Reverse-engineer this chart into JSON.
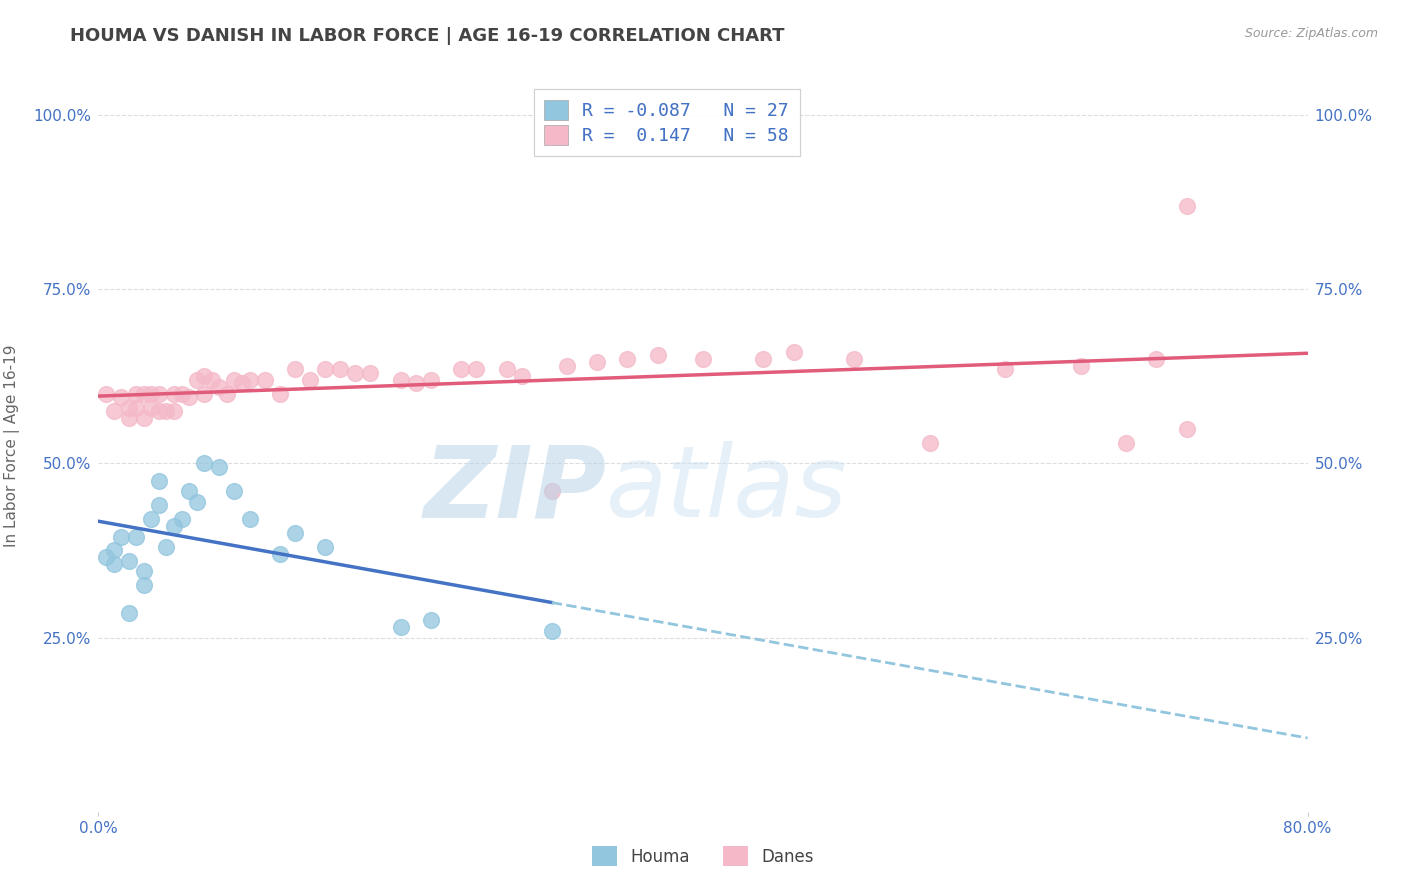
{
  "title": "HOUMA VS DANISH IN LABOR FORCE | AGE 16-19 CORRELATION CHART",
  "source_text": "Source: ZipAtlas.com",
  "ylabel": "In Labor Force | Age 16-19",
  "xlim": [
    0.0,
    0.8
  ],
  "ylim": [
    0.0,
    1.05
  ],
  "ytick_vals": [
    0.25,
    0.5,
    0.75,
    1.0
  ],
  "xtick_vals": [
    0.0,
    0.8
  ],
  "houma_color": "#92c5de",
  "danes_color": "#f4b8c8",
  "trend_houma_solid_color": "#4472c4",
  "trend_houma_dash_color": "#92c5de",
  "trend_danes_color": "#e05c7a",
  "houma_R": -0.087,
  "houma_N": 27,
  "danes_R": 0.147,
  "danes_N": 58,
  "tick_color": "#4472c4",
  "background_color": "#ffffff",
  "grid_color": "#dddddd",
  "title_color": "#444444",
  "title_fontsize": 13,
  "axis_label_color": "#666666",
  "houma_scatter_x": [
    0.005,
    0.01,
    0.01,
    0.015,
    0.02,
    0.02,
    0.025,
    0.03,
    0.03,
    0.035,
    0.04,
    0.04,
    0.045,
    0.05,
    0.055,
    0.06,
    0.065,
    0.07,
    0.08,
    0.09,
    0.1,
    0.12,
    0.13,
    0.15,
    0.2,
    0.22,
    0.3
  ],
  "houma_scatter_y": [
    0.365,
    0.355,
    0.375,
    0.395,
    0.285,
    0.36,
    0.395,
    0.325,
    0.345,
    0.42,
    0.44,
    0.475,
    0.38,
    0.41,
    0.42,
    0.46,
    0.445,
    0.5,
    0.495,
    0.46,
    0.42,
    0.37,
    0.4,
    0.38,
    0.265,
    0.275,
    0.26
  ],
  "danes_scatter_x": [
    0.005,
    0.01,
    0.015,
    0.02,
    0.02,
    0.025,
    0.025,
    0.03,
    0.03,
    0.035,
    0.035,
    0.04,
    0.04,
    0.045,
    0.05,
    0.05,
    0.055,
    0.06,
    0.065,
    0.07,
    0.07,
    0.075,
    0.08,
    0.085,
    0.09,
    0.095,
    0.1,
    0.11,
    0.12,
    0.13,
    0.14,
    0.15,
    0.16,
    0.17,
    0.18,
    0.2,
    0.21,
    0.22,
    0.24,
    0.25,
    0.27,
    0.28,
    0.3,
    0.31,
    0.33,
    0.35,
    0.37,
    0.4,
    0.44,
    0.46,
    0.5,
    0.55,
    0.6,
    0.65,
    0.68,
    0.7,
    0.72,
    0.72
  ],
  "danes_scatter_y": [
    0.6,
    0.575,
    0.595,
    0.565,
    0.58,
    0.58,
    0.6,
    0.565,
    0.6,
    0.58,
    0.6,
    0.575,
    0.6,
    0.575,
    0.575,
    0.6,
    0.6,
    0.595,
    0.62,
    0.6,
    0.625,
    0.62,
    0.61,
    0.6,
    0.62,
    0.615,
    0.62,
    0.62,
    0.6,
    0.635,
    0.62,
    0.635,
    0.635,
    0.63,
    0.63,
    0.62,
    0.615,
    0.62,
    0.635,
    0.635,
    0.635,
    0.625,
    0.46,
    0.64,
    0.645,
    0.65,
    0.655,
    0.65,
    0.65,
    0.66,
    0.65,
    0.53,
    0.635,
    0.64,
    0.53,
    0.65,
    0.55,
    0.87
  ],
  "watermark_zip": "ZIP",
  "watermark_atlas": "atlas"
}
